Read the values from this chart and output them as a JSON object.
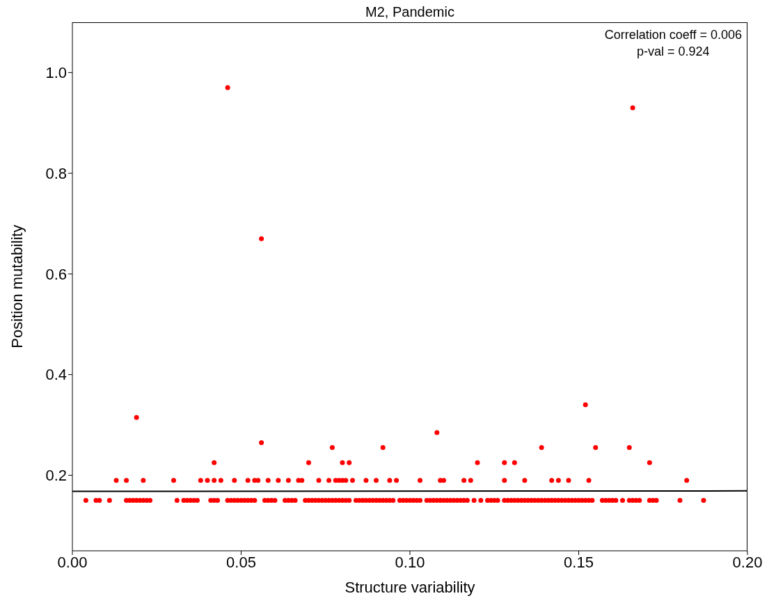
{
  "chart_data": {
    "type": "scatter",
    "title": "M2, Pandemic",
    "xlabel": "Structure variability",
    "ylabel": "Position mutability",
    "annotations": [
      "Correlation coeff = 0.006",
      "p-val = 0.924"
    ],
    "xlim": [
      0,
      0.2
    ],
    "ylim": [
      0.05,
      1.1
    ],
    "xticks": [
      {
        "value": 0,
        "label": "0.00"
      },
      {
        "value": 0.05,
        "label": "0.05"
      },
      {
        "value": 0.1,
        "label": "0.10"
      },
      {
        "value": 0.15,
        "label": "0.15"
      },
      {
        "value": 0.2,
        "label": "0.20"
      }
    ],
    "yticks": [
      0.2,
      0.4,
      0.6,
      0.8,
      {
        "value": 1,
        "label": "1.0"
      }
    ],
    "grid": false,
    "marker": "circle",
    "series": [
      {
        "color": "#ff0000",
        "x": [
          0.004,
          0.007,
          0.008,
          0.011,
          0.016,
          0.017,
          0.018,
          0.019,
          0.02,
          0.021,
          0.022,
          0.023,
          0.031,
          0.033,
          0.034,
          0.035,
          0.036,
          0.037,
          0.041,
          0.042,
          0.043,
          0.046,
          0.047,
          0.048,
          0.049,
          0.05,
          0.051,
          0.052,
          0.053,
          0.054,
          0.057,
          0.058,
          0.059,
          0.06,
          0.063,
          0.064,
          0.065,
          0.066,
          0.069,
          0.07,
          0.071,
          0.072,
          0.073,
          0.074,
          0.075,
          0.076,
          0.077,
          0.078,
          0.079,
          0.08,
          0.081,
          0.082,
          0.084,
          0.085,
          0.086,
          0.087,
          0.088,
          0.089,
          0.09,
          0.091,
          0.092,
          0.093,
          0.094,
          0.095,
          0.097,
          0.098,
          0.099,
          0.1,
          0.101,
          0.102,
          0.103,
          0.105,
          0.106,
          0.107,
          0.108,
          0.109,
          0.11,
          0.111,
          0.112,
          0.113,
          0.114,
          0.115,
          0.116,
          0.117,
          0.119,
          0.121,
          0.123,
          0.124,
          0.125,
          0.126,
          0.128,
          0.129,
          0.13,
          0.131,
          0.132,
          0.133,
          0.134,
          0.135,
          0.136,
          0.137,
          0.138,
          0.139,
          0.14,
          0.141,
          0.142,
          0.143,
          0.144,
          0.145,
          0.146,
          0.147,
          0.148,
          0.149,
          0.15,
          0.151,
          0.152,
          0.153,
          0.154,
          0.157,
          0.158,
          0.159,
          0.16,
          0.161,
          0.163,
          0.165,
          0.166,
          0.167,
          0.168,
          0.171,
          0.172,
          0.173,
          0.18,
          0.187,
          0.013,
          0.016,
          0.021,
          0.03,
          0.038,
          0.04,
          0.042,
          0.044,
          0.048,
          0.052,
          0.054,
          0.055,
          0.058,
          0.061,
          0.064,
          0.067,
          0.068,
          0.073,
          0.076,
          0.078,
          0.079,
          0.08,
          0.081,
          0.083,
          0.087,
          0.09,
          0.094,
          0.096,
          0.103,
          0.109,
          0.11,
          0.116,
          0.118,
          0.128,
          0.134,
          0.142,
          0.144,
          0.147,
          0.153,
          0.182,
          0.042,
          0.07,
          0.08,
          0.082,
          0.12,
          0.128,
          0.131,
          0.171,
          0.077,
          0.092,
          0.139,
          0.155,
          0.165,
          0.056,
          0.108,
          0.019,
          0.152,
          0.056,
          0.046,
          0.166
        ],
        "values": [
          0.15,
          0.15,
          0.15,
          0.15,
          0.15,
          0.15,
          0.15,
          0.15,
          0.15,
          0.15,
          0.15,
          0.15,
          0.15,
          0.15,
          0.15,
          0.15,
          0.15,
          0.15,
          0.15,
          0.15,
          0.15,
          0.15,
          0.15,
          0.15,
          0.15,
          0.15,
          0.15,
          0.15,
          0.15,
          0.15,
          0.15,
          0.15,
          0.15,
          0.15,
          0.15,
          0.15,
          0.15,
          0.15,
          0.15,
          0.15,
          0.15,
          0.15,
          0.15,
          0.15,
          0.15,
          0.15,
          0.15,
          0.15,
          0.15,
          0.15,
          0.15,
          0.15,
          0.15,
          0.15,
          0.15,
          0.15,
          0.15,
          0.15,
          0.15,
          0.15,
          0.15,
          0.15,
          0.15,
          0.15,
          0.15,
          0.15,
          0.15,
          0.15,
          0.15,
          0.15,
          0.15,
          0.15,
          0.15,
          0.15,
          0.15,
          0.15,
          0.15,
          0.15,
          0.15,
          0.15,
          0.15,
          0.15,
          0.15,
          0.15,
          0.15,
          0.15,
          0.15,
          0.15,
          0.15,
          0.15,
          0.15,
          0.15,
          0.15,
          0.15,
          0.15,
          0.15,
          0.15,
          0.15,
          0.15,
          0.15,
          0.15,
          0.15,
          0.15,
          0.15,
          0.15,
          0.15,
          0.15,
          0.15,
          0.15,
          0.15,
          0.15,
          0.15,
          0.15,
          0.15,
          0.15,
          0.15,
          0.15,
          0.15,
          0.15,
          0.15,
          0.15,
          0.15,
          0.15,
          0.15,
          0.15,
          0.15,
          0.15,
          0.15,
          0.15,
          0.15,
          0.15,
          0.15,
          0.19,
          0.19,
          0.19,
          0.19,
          0.19,
          0.19,
          0.19,
          0.19,
          0.19,
          0.19,
          0.19,
          0.19,
          0.19,
          0.19,
          0.19,
          0.19,
          0.19,
          0.19,
          0.19,
          0.19,
          0.19,
          0.19,
          0.19,
          0.19,
          0.19,
          0.19,
          0.19,
          0.19,
          0.19,
          0.19,
          0.19,
          0.19,
          0.19,
          0.19,
          0.19,
          0.19,
          0.19,
          0.19,
          0.19,
          0.19,
          0.225,
          0.225,
          0.225,
          0.225,
          0.225,
          0.225,
          0.225,
          0.225,
          0.255,
          0.255,
          0.255,
          0.255,
          0.255,
          0.265,
          0.285,
          0.315,
          0.34,
          0.67,
          0.97,
          0.93
        ]
      },
      {
        "type": "line",
        "color": "#000000",
        "x": [
          0,
          0.2
        ],
        "values": [
          0.168,
          0.169
        ],
        "marker": "none",
        "line_style": "solid"
      }
    ]
  }
}
